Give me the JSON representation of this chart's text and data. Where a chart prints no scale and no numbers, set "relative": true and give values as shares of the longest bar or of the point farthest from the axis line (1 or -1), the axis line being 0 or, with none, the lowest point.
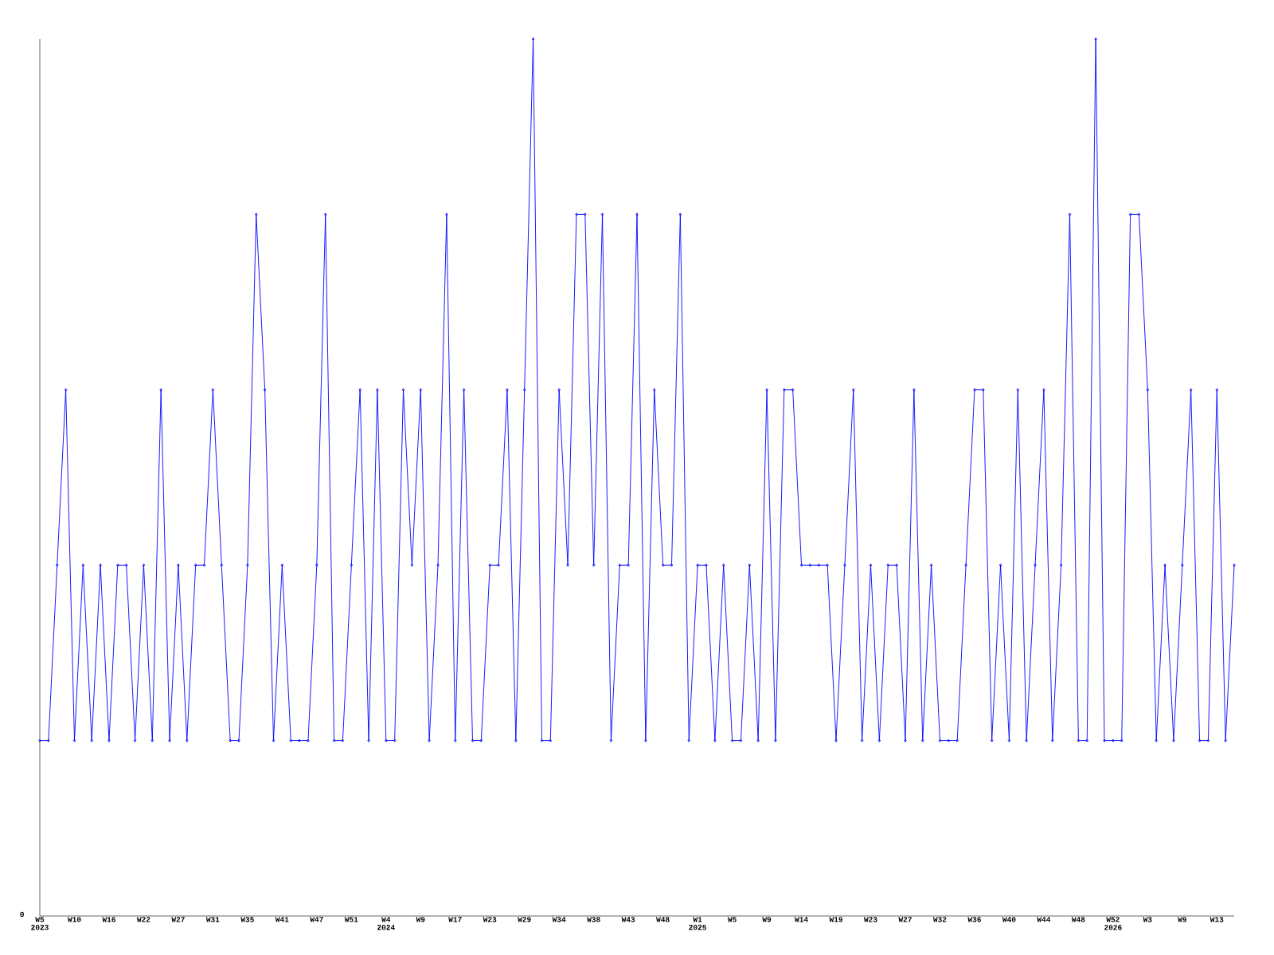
{
  "chart_data": {
    "type": "line",
    "relative": true,
    "color": "#0000ff",
    "marker": "diamond",
    "line_style": "solid",
    "grid": false,
    "annotations": [
      "0"
    ],
    "categories": [
      "W5 2023",
      null,
      null,
      null,
      "W10",
      null,
      null,
      null,
      "W16",
      null,
      null,
      null,
      "W22",
      null,
      null,
      null,
      "W27",
      null,
      null,
      null,
      "W31",
      null,
      null,
      null,
      "W35",
      null,
      null,
      null,
      "W41",
      null,
      null,
      null,
      "W47",
      null,
      null,
      null,
      "W51",
      null,
      null,
      null,
      "W4 2024",
      null,
      null,
      null,
      "W9",
      null,
      null,
      null,
      "W17",
      null,
      null,
      null,
      "W23",
      null,
      null,
      null,
      "W29",
      null,
      null,
      null,
      "W34",
      null,
      null,
      null,
      "W38",
      null,
      null,
      null,
      "W43",
      null,
      null,
      null,
      "W48",
      null,
      null,
      null,
      "W1 2025",
      null,
      null,
      null,
      "W5",
      null,
      null,
      null,
      "W9",
      null,
      null,
      null,
      "W14",
      null,
      null,
      null,
      "W19",
      null,
      null,
      null,
      "W23",
      null,
      null,
      null,
      "W27",
      null,
      null,
      null,
      "W32",
      null,
      null,
      null,
      "W36",
      null,
      null,
      null,
      "W40",
      null,
      null,
      null,
      "W44",
      null,
      null,
      null,
      "W48",
      null,
      null,
      null,
      "W52 2026",
      null,
      null,
      null,
      "W3",
      null,
      null,
      null,
      "W9",
      null,
      null,
      null,
      "W13",
      null,
      null
    ],
    "values": [
      0.2,
      0.2,
      0.4,
      0.6,
      0.2,
      0.4,
      0.2,
      0.4,
      0.2,
      0.4,
      0.4,
      0.2,
      0.4,
      0.2,
      0.6,
      0.2,
      0.4,
      0.2,
      0.4,
      0.4,
      0.6,
      0.4,
      0.2,
      0.2,
      0.4,
      0.8,
      0.6,
      0.2,
      0.4,
      0.2,
      0.2,
      0.2,
      0.4,
      0.8,
      0.2,
      0.2,
      0.4,
      0.6,
      0.2,
      0.6,
      0.2,
      0.2,
      0.6,
      0.4,
      0.6,
      0.2,
      0.4,
      0.8,
      0.2,
      0.6,
      0.2,
      0.2,
      0.4,
      0.4,
      0.6,
      0.2,
      0.6,
      1,
      0.2,
      0.2,
      0.6,
      0.4,
      0.8,
      0.8,
      0.4,
      0.8,
      0.2,
      0.4,
      0.4,
      0.8,
      0.2,
      0.6,
      0.4,
      0.4,
      0.8,
      0.2,
      0.4,
      0.4,
      0.2,
      0.4,
      0.2,
      0.2,
      0.4,
      0.2,
      0.6,
      0.2,
      0.6,
      0.6,
      0.4,
      0.4,
      0.4,
      0.4,
      0.2,
      0.4,
      0.6,
      0.2,
      0.4,
      0.2,
      0.4,
      0.4,
      0.2,
      0.6,
      0.2,
      0.4,
      0.2,
      0.2,
      0.2,
      0.4,
      0.6,
      0.6,
      0.2,
      0.4,
      0.2,
      0.6,
      0.2,
      0.4,
      0.6,
      0.2,
      0.4,
      0.8,
      0.2,
      0.2,
      1,
      0.2,
      0.2,
      0.2,
      0.8,
      0.8,
      0.6,
      0.2,
      0.4,
      0.2,
      0.4,
      0.6,
      0.2,
      0.2,
      0.6,
      0.2,
      0.4
    ]
  }
}
